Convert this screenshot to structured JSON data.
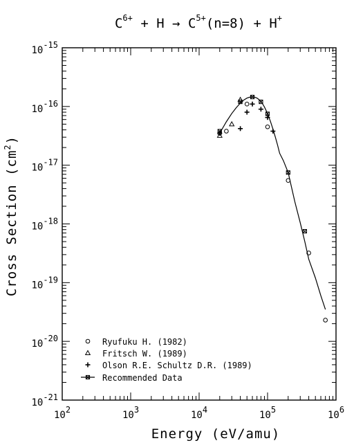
{
  "chart_data": {
    "type": "scatter",
    "title": {
      "parts": [
        {
          "text": "C",
          "sup": "6+"
        },
        {
          "text": " + H → C",
          "sup": "5+"
        },
        {
          "text": "(n=8) + H",
          "sup": "+"
        }
      ]
    },
    "xlabel": "Energy (eV/amu)",
    "ylabel": {
      "main": "Cross Section (cm",
      "sup": "2",
      "tail": ")"
    },
    "x_scale": "log",
    "y_scale": "log",
    "xlim": [
      100,
      1000000
    ],
    "ylim": [
      1e-21,
      1e-15
    ],
    "x_ticks": [
      {
        "value": 100,
        "base": "10",
        "exp": "2"
      },
      {
        "value": 1000,
        "base": "10",
        "exp": "3"
      },
      {
        "value": 10000,
        "base": "10",
        "exp": "4"
      },
      {
        "value": 100000,
        "base": "10",
        "exp": "5"
      },
      {
        "value": 1000000,
        "base": "10",
        "exp": "6"
      }
    ],
    "y_ticks": [
      {
        "value": 1e-15,
        "base": "10",
        "exp": "-15"
      },
      {
        "value": 1e-16,
        "base": "10",
        "exp": "-16"
      },
      {
        "value": 1e-17,
        "base": "10",
        "exp": "-17"
      },
      {
        "value": 1e-18,
        "base": "10",
        "exp": "-18"
      },
      {
        "value": 1e-19,
        "base": "10",
        "exp": "-19"
      },
      {
        "value": 1e-20,
        "base": "10",
        "exp": "-20"
      },
      {
        "value": 1e-21,
        "base": "10",
        "exp": "-21"
      }
    ],
    "grid": false,
    "legend_position": "bottom-left",
    "series": [
      {
        "name": "Ryufuku H. (1982)",
        "marker": "circle",
        "x": [
          20000,
          25000,
          50000,
          100000,
          200000,
          400000,
          700000
        ],
        "y": [
          3.5e-17,
          3.8e-17,
          1.1e-16,
          4.5e-17,
          5.5e-18,
          3.2e-19,
          2.3e-20
        ]
      },
      {
        "name": "Fritsch W. (1989)",
        "marker": "triangle",
        "x": [
          20000,
          30000,
          40000
        ],
        "y": [
          3.2e-17,
          5e-17,
          1.3e-16
        ]
      },
      {
        "name": "Olson R.E. Schultz D.R. (1989)",
        "marker": "plus-circle",
        "x": [
          20000,
          40000,
          50000,
          60000,
          80000,
          100000,
          120000
        ],
        "y": [
          3.5e-17,
          4.2e-17,
          8e-17,
          1.1e-16,
          9e-17,
          6.5e-17,
          3.8e-17
        ]
      },
      {
        "name": "Recommended Data",
        "marker": "x-square",
        "x": [
          20000,
          40000,
          60000,
          80000,
          100000,
          200000,
          350000
        ],
        "y": [
          3.8e-17,
          1.2e-16,
          1.45e-16,
          1.2e-16,
          7.5e-17,
          7.5e-18,
          7.5e-19
        ],
        "curve_x": [
          20000,
          25000,
          30000,
          35000,
          40000,
          45000,
          50000,
          55000,
          60000,
          65000,
          70000,
          75000,
          80000,
          85000,
          90000,
          95000,
          100000,
          110000,
          120000,
          130000,
          140000,
          150000,
          170000,
          200000,
          250000,
          300000,
          350000,
          400000,
          500000,
          600000,
          700000
        ],
        "curve_y": [
          3.5e-17,
          5.5e-17,
          7.6e-17,
          9.6e-17,
          1.14e-16,
          1.29e-16,
          1.39e-16,
          1.44e-16,
          1.46e-16,
          1.44e-16,
          1.39e-16,
          1.31e-16,
          1.21e-16,
          1.1e-16,
          9.8e-17,
          8.6e-17,
          7.5e-17,
          5.6e-17,
          4.1e-17,
          3e-17,
          2.2e-17,
          1.6e-17,
          1.2e-17,
          7.5e-18,
          2.4e-18,
          1.05e-18,
          5e-19,
          2.5e-19,
          1.2e-19,
          6e-20,
          3.5e-20
        ]
      }
    ]
  }
}
